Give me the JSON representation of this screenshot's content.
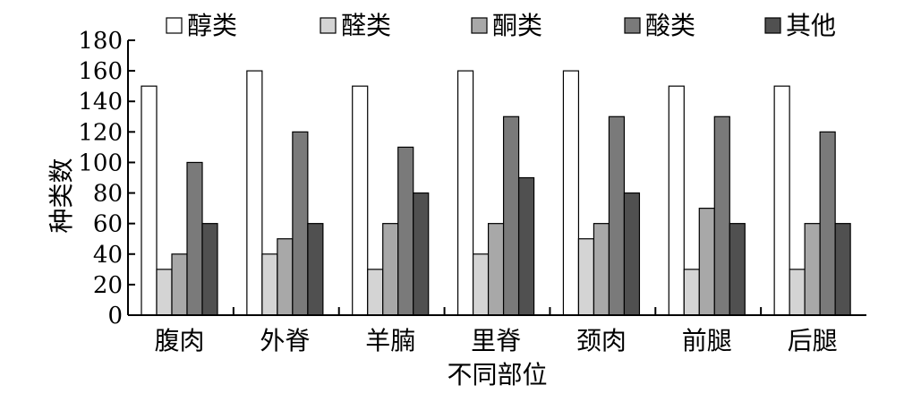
{
  "chart_data": {
    "type": "bar",
    "title": "",
    "xlabel": "不同部位",
    "ylabel": "种类数",
    "ylim": [
      0,
      180
    ],
    "yticks": [
      0,
      20,
      40,
      60,
      80,
      100,
      120,
      140,
      160,
      180
    ],
    "grid": false,
    "legend_position": "top",
    "categories": [
      "腹肉",
      "外脊",
      "羊腩",
      "里脊",
      "颈肉",
      "前腿",
      "后腿"
    ],
    "series": [
      {
        "name": "醇类",
        "color": "#ffffff",
        "values": [
          150,
          160,
          150,
          160,
          160,
          150,
          150
        ]
      },
      {
        "name": "醛类",
        "color": "#d4d4d4",
        "values": [
          30,
          40,
          30,
          40,
          50,
          30,
          30
        ]
      },
      {
        "name": "酮类",
        "color": "#a8a8a8",
        "values": [
          40,
          50,
          60,
          60,
          60,
          70,
          60
        ]
      },
      {
        "name": "酸类",
        "color": "#7a7a7a",
        "values": [
          100,
          120,
          110,
          130,
          130,
          130,
          120
        ]
      },
      {
        "name": "其他",
        "color": "#505050",
        "values": [
          60,
          60,
          80,
          90,
          80,
          60,
          60
        ]
      }
    ]
  }
}
